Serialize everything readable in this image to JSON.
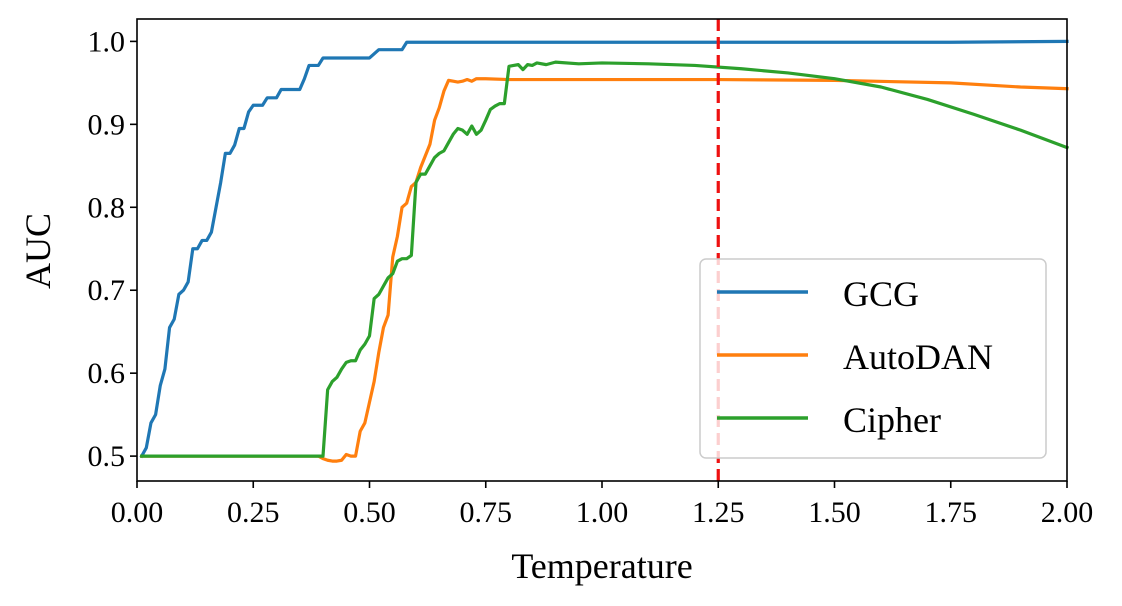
{
  "chart_data": {
    "type": "line",
    "xlabel": "Temperature",
    "ylabel": "AUC",
    "xlim": [
      0.0,
      2.0
    ],
    "ylim": [
      0.47,
      1.027
    ],
    "x_ticks": [
      0.0,
      0.25,
      0.5,
      0.75,
      1.0,
      1.25,
      1.5,
      1.75,
      2.0
    ],
    "x_tick_labels": [
      "0.00",
      "0.25",
      "0.50",
      "0.75",
      "1.00",
      "1.25",
      "1.50",
      "1.75",
      "2.00"
    ],
    "y_ticks": [
      0.5,
      0.6,
      0.7,
      0.8,
      0.9,
      1.0
    ],
    "y_tick_labels": [
      "0.5",
      "0.6",
      "0.7",
      "0.8",
      "0.9",
      "1.0"
    ],
    "grid": false,
    "legend_position": "bottom-right",
    "vline": {
      "x": 1.25,
      "color": "#ee1111",
      "style": "dashed"
    },
    "series": [
      {
        "name": "GCG",
        "color": "#1f77b4",
        "x": [
          0.01,
          0.02,
          0.03,
          0.04,
          0.05,
          0.06,
          0.07,
          0.08,
          0.09,
          0.1,
          0.11,
          0.12,
          0.13,
          0.14,
          0.15,
          0.16,
          0.17,
          0.18,
          0.19,
          0.2,
          0.21,
          0.22,
          0.23,
          0.24,
          0.25,
          0.26,
          0.27,
          0.28,
          0.29,
          0.3,
          0.31,
          0.32,
          0.33,
          0.34,
          0.35,
          0.36,
          0.37,
          0.38,
          0.39,
          0.4,
          0.42,
          0.44,
          0.46,
          0.48,
          0.5,
          0.52,
          0.54,
          0.56,
          0.57,
          0.58,
          0.6,
          0.7,
          0.8,
          1.0,
          1.25,
          1.5,
          1.75,
          2.0
        ],
        "y": [
          0.5,
          0.51,
          0.54,
          0.55,
          0.585,
          0.605,
          0.655,
          0.665,
          0.695,
          0.7,
          0.71,
          0.75,
          0.75,
          0.76,
          0.76,
          0.77,
          0.8,
          0.83,
          0.865,
          0.865,
          0.875,
          0.895,
          0.895,
          0.915,
          0.923,
          0.923,
          0.923,
          0.932,
          0.932,
          0.932,
          0.942,
          0.942,
          0.942,
          0.942,
          0.942,
          0.955,
          0.971,
          0.971,
          0.971,
          0.98,
          0.98,
          0.98,
          0.98,
          0.98,
          0.98,
          0.99,
          0.99,
          0.99,
          0.99,
          0.999,
          0.999,
          0.999,
          0.999,
          0.999,
          0.999,
          0.999,
          0.999,
          1.0
        ]
      },
      {
        "name": "AutoDAN",
        "color": "#ff7f0e",
        "x": [
          0.01,
          0.1,
          0.2,
          0.3,
          0.39,
          0.4,
          0.41,
          0.42,
          0.43,
          0.44,
          0.45,
          0.46,
          0.47,
          0.48,
          0.49,
          0.5,
          0.51,
          0.52,
          0.53,
          0.54,
          0.55,
          0.56,
          0.57,
          0.58,
          0.59,
          0.6,
          0.61,
          0.62,
          0.63,
          0.64,
          0.65,
          0.66,
          0.67,
          0.68,
          0.69,
          0.7,
          0.71,
          0.72,
          0.73,
          0.75,
          0.8,
          0.9,
          1.0,
          1.25,
          1.5,
          1.75,
          1.9,
          2.0
        ],
        "y": [
          0.5,
          0.5,
          0.5,
          0.5,
          0.5,
          0.497,
          0.495,
          0.494,
          0.494,
          0.495,
          0.502,
          0.5,
          0.5,
          0.53,
          0.54,
          0.565,
          0.59,
          0.625,
          0.655,
          0.67,
          0.74,
          0.765,
          0.8,
          0.805,
          0.825,
          0.83,
          0.848,
          0.862,
          0.876,
          0.905,
          0.92,
          0.94,
          0.953,
          0.952,
          0.951,
          0.952,
          0.954,
          0.952,
          0.955,
          0.955,
          0.954,
          0.954,
          0.954,
          0.954,
          0.953,
          0.95,
          0.945,
          0.943
        ]
      },
      {
        "name": "Cipher",
        "color": "#2ca02c",
        "x": [
          0.01,
          0.1,
          0.2,
          0.3,
          0.39,
          0.4,
          0.41,
          0.42,
          0.43,
          0.44,
          0.45,
          0.46,
          0.47,
          0.48,
          0.49,
          0.5,
          0.51,
          0.52,
          0.53,
          0.54,
          0.55,
          0.56,
          0.57,
          0.58,
          0.59,
          0.6,
          0.61,
          0.62,
          0.63,
          0.64,
          0.65,
          0.66,
          0.67,
          0.68,
          0.69,
          0.7,
          0.71,
          0.72,
          0.73,
          0.74,
          0.75,
          0.76,
          0.77,
          0.78,
          0.79,
          0.8,
          0.81,
          0.82,
          0.83,
          0.84,
          0.85,
          0.86,
          0.88,
          0.9,
          0.95,
          1.0,
          1.1,
          1.2,
          1.3,
          1.4,
          1.5,
          1.6,
          1.7,
          1.8,
          1.9,
          2.0
        ],
        "y": [
          0.5,
          0.5,
          0.5,
          0.5,
          0.5,
          0.5,
          0.58,
          0.59,
          0.595,
          0.605,
          0.613,
          0.615,
          0.615,
          0.628,
          0.635,
          0.645,
          0.69,
          0.695,
          0.705,
          0.715,
          0.72,
          0.735,
          0.738,
          0.738,
          0.742,
          0.83,
          0.84,
          0.84,
          0.85,
          0.86,
          0.865,
          0.868,
          0.878,
          0.888,
          0.895,
          0.893,
          0.888,
          0.898,
          0.888,
          0.893,
          0.905,
          0.918,
          0.922,
          0.925,
          0.925,
          0.97,
          0.971,
          0.972,
          0.966,
          0.972,
          0.971,
          0.974,
          0.972,
          0.975,
          0.973,
          0.974,
          0.973,
          0.971,
          0.967,
          0.962,
          0.955,
          0.945,
          0.93,
          0.912,
          0.893,
          0.872
        ]
      }
    ]
  }
}
